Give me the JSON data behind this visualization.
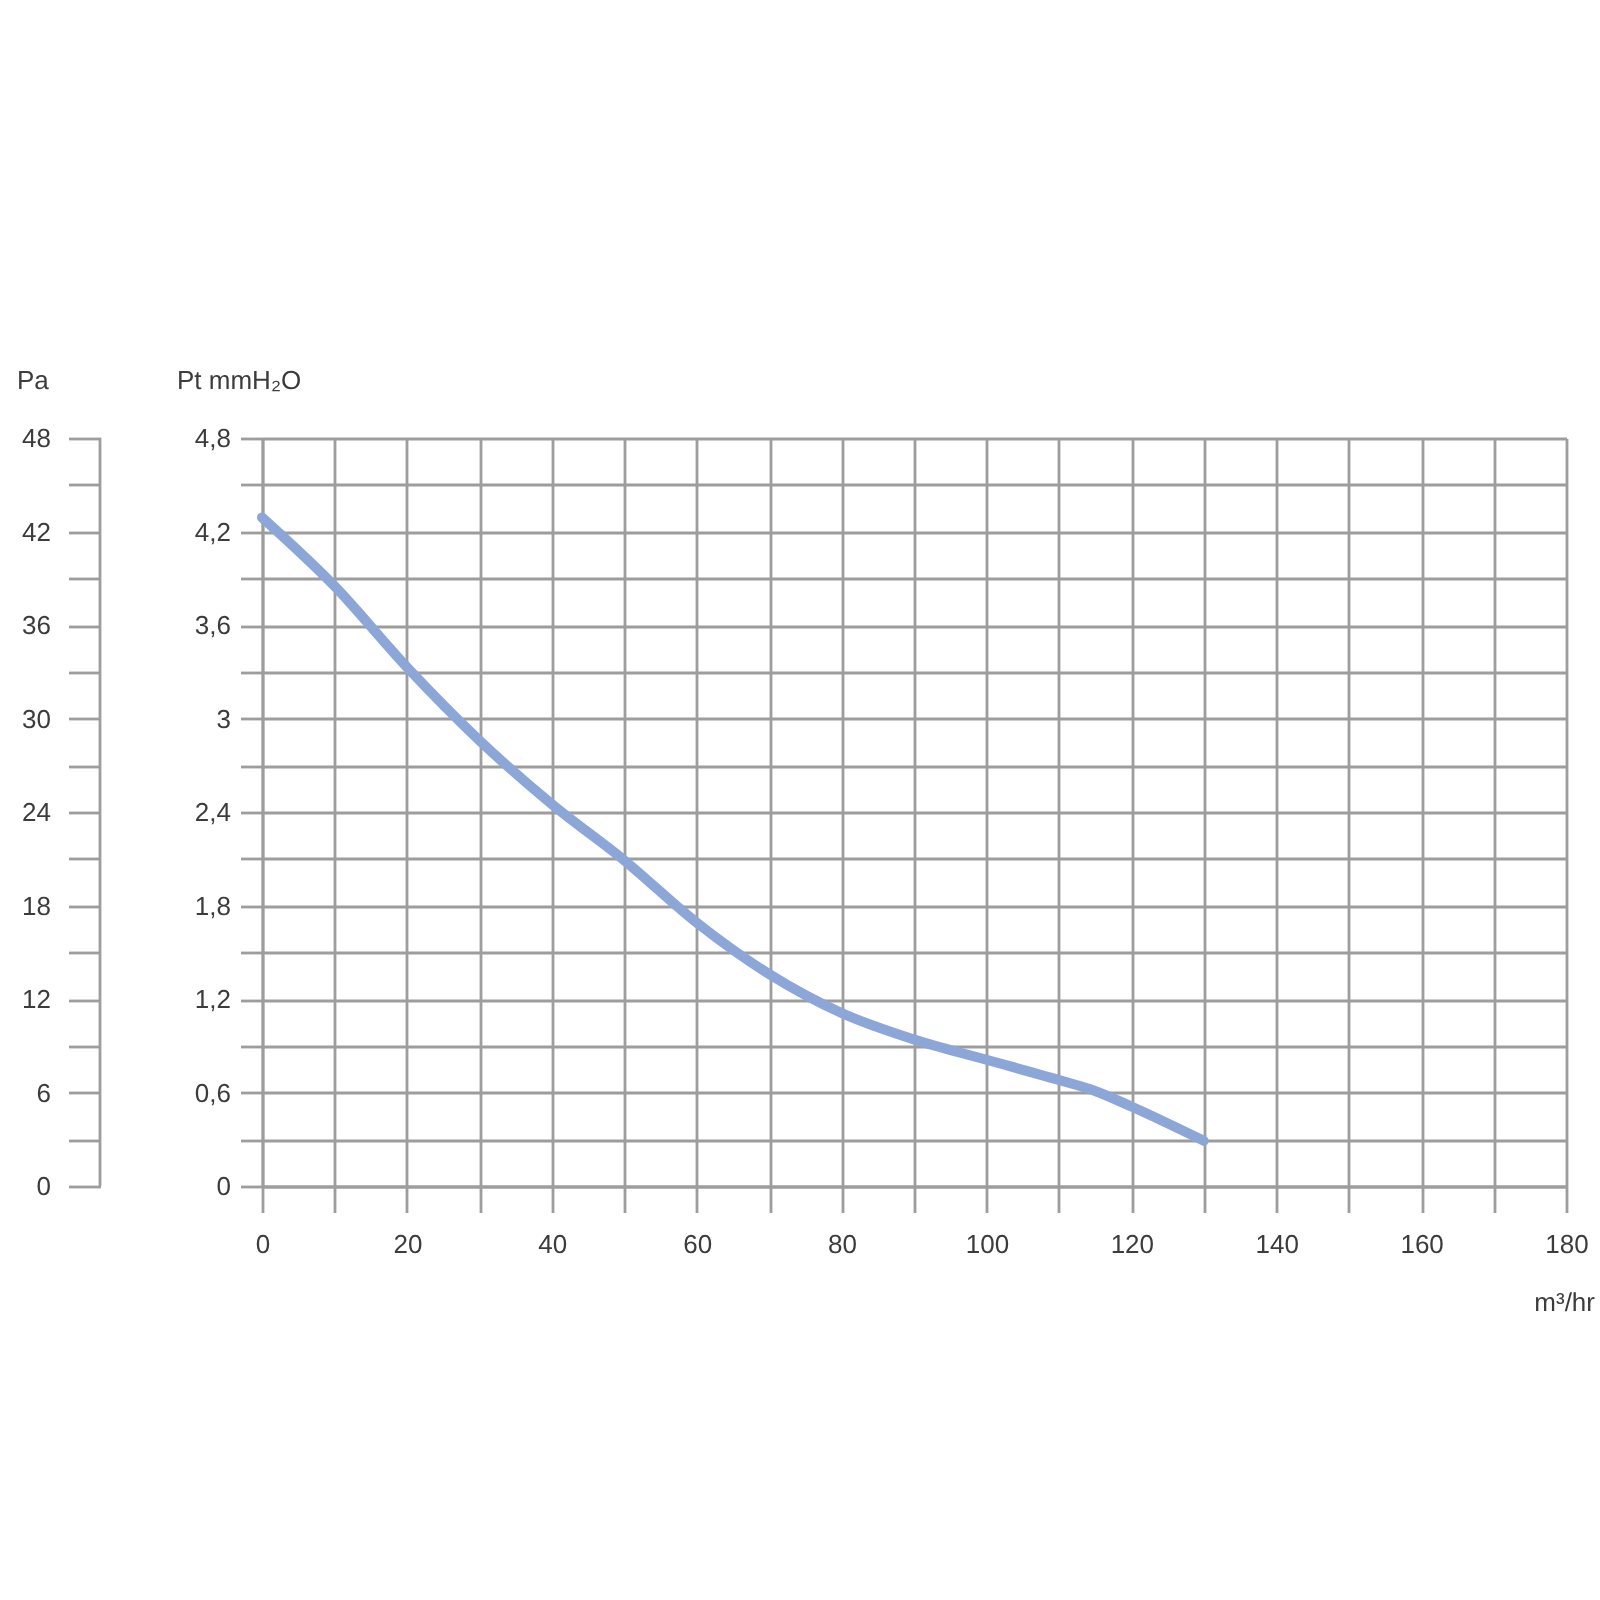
{
  "chart_data": {
    "type": "line",
    "xlabel": "m³/hr",
    "ylabel": "Pt mmH₂O",
    "y2label": "Pa",
    "x": [
      0,
      10,
      20,
      30,
      40,
      50,
      60,
      70,
      80,
      90,
      100,
      110,
      115,
      120,
      130
    ],
    "series": [
      {
        "color": "#8ca6d7",
        "values": [
          4.29,
          3.85,
          3.33,
          2.86,
          2.45,
          2.09,
          1.69,
          1.36,
          1.11,
          0.94,
          0.81,
          0.68,
          0.61,
          0.51,
          0.29
        ]
      }
    ],
    "xlim": [
      0,
      180
    ],
    "xticks": [
      0,
      {
        "value": 10,
        "label": null
      },
      20,
      {
        "value": 30,
        "label": null
      },
      40,
      {
        "value": 50,
        "label": null
      },
      60,
      {
        "value": 70,
        "label": null
      },
      80,
      {
        "value": 90,
        "label": null
      },
      100,
      {
        "value": 110,
        "label": null
      },
      120,
      {
        "value": 130,
        "label": null
      },
      140,
      {
        "value": 150,
        "label": null
      },
      160,
      {
        "value": 170,
        "label": null
      },
      180
    ],
    "ylim": [
      0,
      4.8
    ],
    "yticks": [
      0,
      {
        "value": 0.3,
        "label": null
      },
      {
        "value": 0.6,
        "label": "0,6"
      },
      {
        "value": 0.9,
        "label": null
      },
      {
        "value": 1.2,
        "label": "1,2"
      },
      {
        "value": 1.5,
        "label": null
      },
      {
        "value": 1.8,
        "label": "1,8"
      },
      {
        "value": 2.1,
        "label": null
      },
      {
        "value": 2.4,
        "label": "2,4"
      },
      {
        "value": 2.7,
        "label": null
      },
      3,
      {
        "value": 3.3,
        "label": null
      },
      {
        "value": 3.6,
        "label": "3,6"
      },
      {
        "value": 3.9,
        "label": null
      },
      {
        "value": 4.2,
        "label": "4,2"
      },
      {
        "value": 4.5,
        "label": null
      },
      {
        "value": 4.8,
        "label": "4,8"
      }
    ],
    "y2lim": [
      0,
      48
    ],
    "y2ticks": [
      0,
      {
        "value": 3,
        "label": null
      },
      6,
      {
        "value": 9,
        "label": null
      },
      12,
      {
        "value": 15,
        "label": null
      },
      18,
      {
        "value": 21,
        "label": null
      },
      24,
      {
        "value": 27,
        "label": null
      },
      30,
      {
        "value": 33,
        "label": null
      },
      36,
      {
        "value": 39,
        "label": null
      },
      42,
      {
        "value": 45,
        "label": null
      },
      48
    ],
    "grid": true,
    "line_style": "solid"
  }
}
